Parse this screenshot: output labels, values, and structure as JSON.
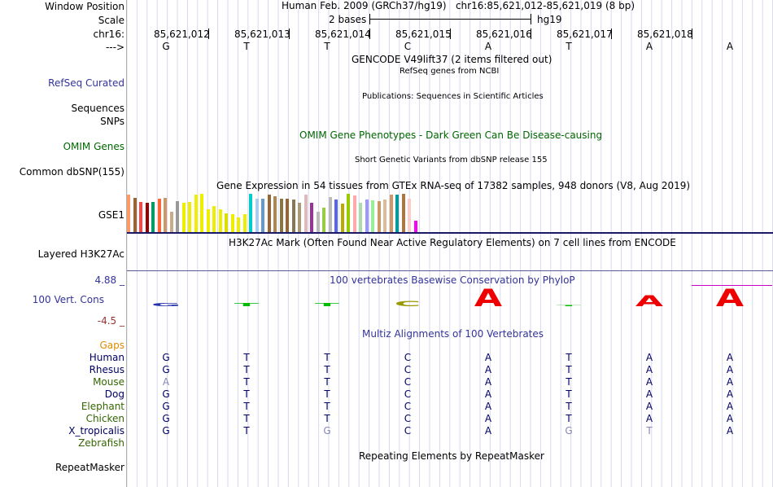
{
  "header": {
    "labels": [
      "Window Position",
      "Scale",
      "chr16:",
      "--->"
    ],
    "position_title": "Human Feb. 2009 (GRCh37/hg19)   chr16:85,621,012-85,621,019 (8 bp)",
    "scale_text": "2 bases",
    "assembly": "hg19",
    "coordinates": [
      "85,621,012",
      "85,621,013",
      "85,621,014",
      "85,621,015",
      "85,621,016",
      "85,621,017",
      "85,621,018"
    ],
    "bases": [
      "G",
      "T",
      "T",
      "C",
      "A",
      "T",
      "A",
      "A"
    ]
  },
  "tracks": {
    "gencode_title": "GENCODE V49lift37 (2 items filtered out)",
    "refseq_title": "RefSeq genes from NCBI",
    "refseq_label": "RefSeq Curated",
    "publications_title": "Publications: Sequences in Scientific Articles",
    "sequences_label": "Sequences",
    "snps_label": "SNPs",
    "omim_title": "OMIM Gene Phenotypes - Dark Green Can Be Disease-causing",
    "omim_label": "OMIM Genes",
    "dbsnp_title": "Short Genetic Variants from dbSNP release 155",
    "dbsnp_label": "Common dbSNP(155)",
    "gtex_title": "Gene Expression in 54 tissues from GTEx RNA-seq of 17382 samples, 948 donors (V8, Aug 2019)",
    "gtex_label": "GSE1",
    "h3k27ac_title": "H3K27Ac Mark (Often Found Near Active Regulatory Elements) on 7 cell lines from ENCODE",
    "h3k27ac_label": "Layered H3K27Ac",
    "phylop_title": "100 vertebrates Basewise Conservation by PhyloP",
    "phylop_label": "100 Vert. Cons",
    "phylop_max": "4.88 _",
    "phylop_min": "-4.5 _",
    "multiz_title": "Multiz Alignments of 100 Vertebrates",
    "gaps_label": "Gaps",
    "repeat_title": "Repeating Elements by RepeatMasker",
    "repeat_label": "RepeatMasker"
  },
  "colors": {
    "title_blue": "#333399",
    "omim_green": "#006600",
    "gaps_orange": "#e08a00",
    "phylop_max_blue": "#333399",
    "phylop_min_red": "#993333",
    "h3k27ac_line": "#1a1a66",
    "h3k27ac_line2": "#5a5a9a",
    "magenta_line": "#cc00cc"
  },
  "gtex_bar_colors": [
    "#ff9966",
    "#996633",
    "#ff4444",
    "#990000",
    "#009966",
    "#ff6633",
    "#cc9966",
    "#ccaa88",
    "#999999",
    "#eeee00",
    "#eeee00",
    "#eeee00",
    "#eeee00",
    "#eeee00",
    "#eeee00",
    "#eeee00",
    "#dddd00",
    "#eeee00",
    "#eeee00",
    "#eeee00",
    "#00cccc",
    "#aaccee",
    "#6699cc",
    "#996633",
    "#aa8855",
    "#887744",
    "#996633",
    "#887755",
    "#aa9977",
    "#ddbbbb",
    "#993399",
    "#bbbbbb",
    "#99cc44",
    "#bbbbbb",
    "#5566ee",
    "#bbaa00",
    "#99cc00",
    "#ffaaaa",
    "#aaddaa",
    "#9999ff",
    "#99ee99",
    "#cc9966",
    "#ddbb99",
    "#cc9966",
    "#009999",
    "#aa7744",
    "#ffcccc",
    "#ff00ff"
  ],
  "gtex_values": [
    0.97,
    0.9,
    0.8,
    0.78,
    0.8,
    0.88,
    0.9,
    0.54,
    0.82,
    0.77,
    0.79,
    0.98,
    1.0,
    0.6,
    0.69,
    0.6,
    0.49,
    0.47,
    0.4,
    0.47,
    1.0,
    0.88,
    0.87,
    0.97,
    0.94,
    0.88,
    0.87,
    0.86,
    0.77,
    0.98,
    0.77,
    0.54,
    0.64,
    0.92,
    0.86,
    0.76,
    1.0,
    0.95,
    0.77,
    0.86,
    0.84,
    0.82,
    0.85,
    0.98,
    0.98,
    1.0,
    0.88,
    0.31
  ],
  "phylop": {
    "colors": [
      "#2233aa",
      "#00bb00",
      "#00bb00",
      "#999900",
      "#ee0000",
      "#00bb00",
      "#ee0000",
      "#ee0000"
    ],
    "heights": [
      0.16,
      0.16,
      0.16,
      0.27,
      0.87,
      0.06,
      0.55,
      0.87
    ]
  },
  "species": [
    {
      "name": "Human",
      "color": "#000066",
      "bases": [
        "G",
        "T",
        "T",
        "C",
        "A",
        "T",
        "A",
        "A"
      ],
      "faded": [
        false,
        false,
        false,
        false,
        false,
        false,
        false,
        false
      ]
    },
    {
      "name": "Rhesus",
      "color": "#000066",
      "bases": [
        "G",
        "T",
        "T",
        "C",
        "A",
        "T",
        "A",
        "A"
      ],
      "faded": [
        false,
        false,
        false,
        false,
        false,
        false,
        false,
        false
      ]
    },
    {
      "name": "Mouse",
      "color": "#336600",
      "bases": [
        "A",
        "T",
        "T",
        "C",
        "A",
        "T",
        "A",
        "A"
      ],
      "faded": [
        true,
        false,
        false,
        false,
        false,
        false,
        false,
        false
      ]
    },
    {
      "name": "Dog",
      "color": "#000066",
      "bases": [
        "G",
        "T",
        "T",
        "C",
        "A",
        "T",
        "A",
        "A"
      ],
      "faded": [
        false,
        false,
        false,
        false,
        false,
        false,
        false,
        false
      ]
    },
    {
      "name": "Elephant",
      "color": "#336600",
      "bases": [
        "G",
        "T",
        "T",
        "C",
        "A",
        "T",
        "A",
        "A"
      ],
      "faded": [
        false,
        false,
        false,
        false,
        false,
        false,
        false,
        false
      ]
    },
    {
      "name": "Chicken",
      "color": "#336600",
      "bases": [
        "G",
        "T",
        "T",
        "C",
        "A",
        "T",
        "A",
        "A"
      ],
      "faded": [
        false,
        false,
        false,
        false,
        false,
        false,
        false,
        false
      ]
    },
    {
      "name": "X_tropicalis",
      "color": "#000066",
      "bases": [
        "G",
        "T",
        "G",
        "C",
        "A",
        "G",
        "T",
        "A"
      ],
      "faded": [
        false,
        false,
        true,
        false,
        false,
        true,
        true,
        false
      ]
    },
    {
      "name": "Zebrafish",
      "color": "#336600",
      "bases": [],
      "faded": []
    }
  ]
}
